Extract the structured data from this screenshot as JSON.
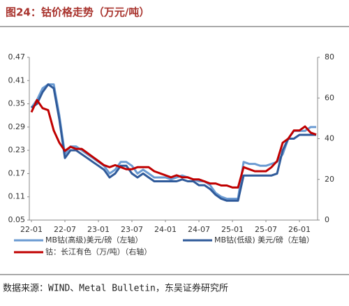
{
  "chart_data": {
    "type": "line",
    "title": "图24：钴价格走势（万元/吨）",
    "source": "数据来源：WIND、Metal Bulletin，东吴证券研究所",
    "categories": [
      "22-01",
      null,
      null,
      null,
      null,
      null,
      "22-07",
      null,
      null,
      null,
      null,
      null,
      "23-01",
      null,
      null,
      null,
      null,
      null,
      "23-07",
      null,
      null,
      null,
      null,
      null,
      "24-01",
      null,
      null,
      null,
      null,
      null,
      "24-07",
      null,
      null,
      null,
      null,
      null,
      "25-01",
      null,
      null,
      null,
      null,
      null,
      "25-07",
      null,
      null,
      null,
      null,
      null,
      "26-01",
      null,
      null,
      null
    ],
    "ylim": [
      0.05,
      0.47
    ],
    "yticks": [
      0.05,
      0.11,
      0.17,
      0.23,
      0.29,
      0.35,
      0.41,
      0.47
    ],
    "y2lim": [
      0,
      80
    ],
    "y2ticks": [
      0,
      20,
      40,
      60,
      80
    ],
    "series": [
      {
        "name": "MB钴(高级)美元/磅（左轴）",
        "color": "#6b9bd2",
        "values": [
          0.34,
          0.36,
          0.39,
          0.4,
          0.4,
          0.32,
          0.22,
          0.24,
          0.24,
          0.23,
          0.22,
          0.21,
          0.2,
          0.19,
          0.17,
          0.18,
          0.2,
          0.2,
          0.19,
          0.17,
          0.18,
          0.17,
          0.16,
          0.16,
          0.16,
          0.155,
          0.16,
          0.165,
          0.16,
          0.155,
          0.15,
          0.15,
          0.14,
          0.12,
          0.11,
          0.105,
          0.105,
          0.105,
          0.2,
          0.195,
          0.195,
          0.19,
          0.19,
          0.195,
          0.2,
          0.22,
          0.26,
          0.28,
          0.28,
          0.28,
          0.29,
          0.29
        ]
      },
      {
        "name": "MB钴(低级) 美元/磅（左轴）",
        "color": "#2f5a9a",
        "values": [
          0.34,
          0.35,
          0.38,
          0.4,
          0.39,
          0.31,
          0.21,
          0.23,
          0.23,
          0.22,
          0.21,
          0.2,
          0.19,
          0.18,
          0.16,
          0.17,
          0.19,
          0.19,
          0.17,
          0.16,
          0.17,
          0.16,
          0.15,
          0.15,
          0.15,
          0.15,
          0.15,
          0.155,
          0.15,
          0.15,
          0.14,
          0.14,
          0.13,
          0.115,
          0.105,
          0.1,
          0.1,
          0.1,
          0.165,
          0.165,
          0.165,
          0.165,
          0.165,
          0.165,
          0.17,
          0.23,
          0.26,
          0.26,
          0.27,
          0.27,
          0.27,
          0.27
        ]
      },
      {
        "name": "钴：长江有色（万/吨）（右轴）",
        "color": "#c00000",
        "axis": "y2",
        "values": [
          53,
          59,
          55,
          54,
          44,
          38,
          34,
          36,
          35,
          35,
          33,
          31,
          29,
          27,
          26,
          27,
          26,
          25,
          25,
          26,
          26,
          26,
          24,
          23,
          22,
          21,
          22,
          21,
          21,
          20,
          20,
          19,
          18,
          18,
          17,
          17,
          16,
          16,
          26,
          25,
          24,
          24,
          24,
          26,
          29,
          38,
          40,
          44,
          44,
          46,
          43,
          42
        ]
      }
    ]
  }
}
